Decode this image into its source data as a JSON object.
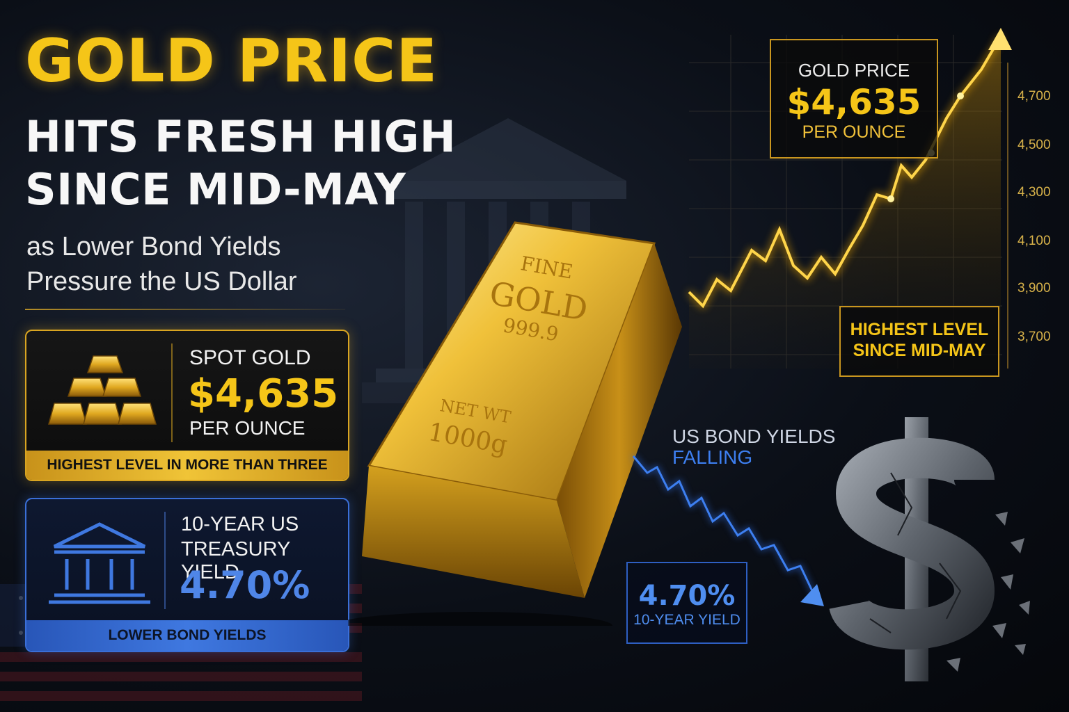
{
  "headline": {
    "line1": "GOLD PRICE",
    "line2": "HITS FRESH HIGH",
    "line3": "SINCE MID-MAY",
    "sub1": "as Lower Bond Yields",
    "sub2": "Pressure the US Dollar"
  },
  "spot_card": {
    "label": "SPOT GOLD",
    "price": "$4,635",
    "unit": "PER OUNCE",
    "banner": "HIGHEST LEVEL IN MORE THAN THREE MONTHS",
    "icon": "gold-bars-stack-icon"
  },
  "treasury_card": {
    "label_line1": "10-YEAR US",
    "label_line2": "TREASURY YIELD",
    "value": "4.70%",
    "banner": "LOWER BOND YIELDS",
    "icon": "bank-building-icon"
  },
  "gold_bar": {
    "line1": "FINE",
    "line2": "GOLD",
    "purity": "999.9",
    "weight_label": "NET WT",
    "weight": "1000g"
  },
  "gold_chart": {
    "price_box": {
      "label": "GOLD PRICE",
      "value": "$4,635",
      "unit": "PER OUNCE"
    },
    "high_box": {
      "line1": "HIGHEST LEVEL",
      "line2": "SINCE MID-MAY"
    },
    "y_ticks": [
      "4,700",
      "4,500",
      "4,300",
      "4,100",
      "3,900",
      "3,700"
    ]
  },
  "bonds": {
    "title_line1": "US BOND YIELDS",
    "title_line2": "FALLING",
    "box_value": "4.70%",
    "box_label": "10-YEAR YIELD"
  },
  "colors": {
    "gold": "#f5c518",
    "gold_dark": "#c9961f",
    "blue": "#3d7ff0",
    "background": "#0b0f17"
  },
  "icons": {
    "dollar": "cracked-dollar-sign-icon",
    "building": "government-building-icon",
    "flag": "us-flag-icon"
  }
}
